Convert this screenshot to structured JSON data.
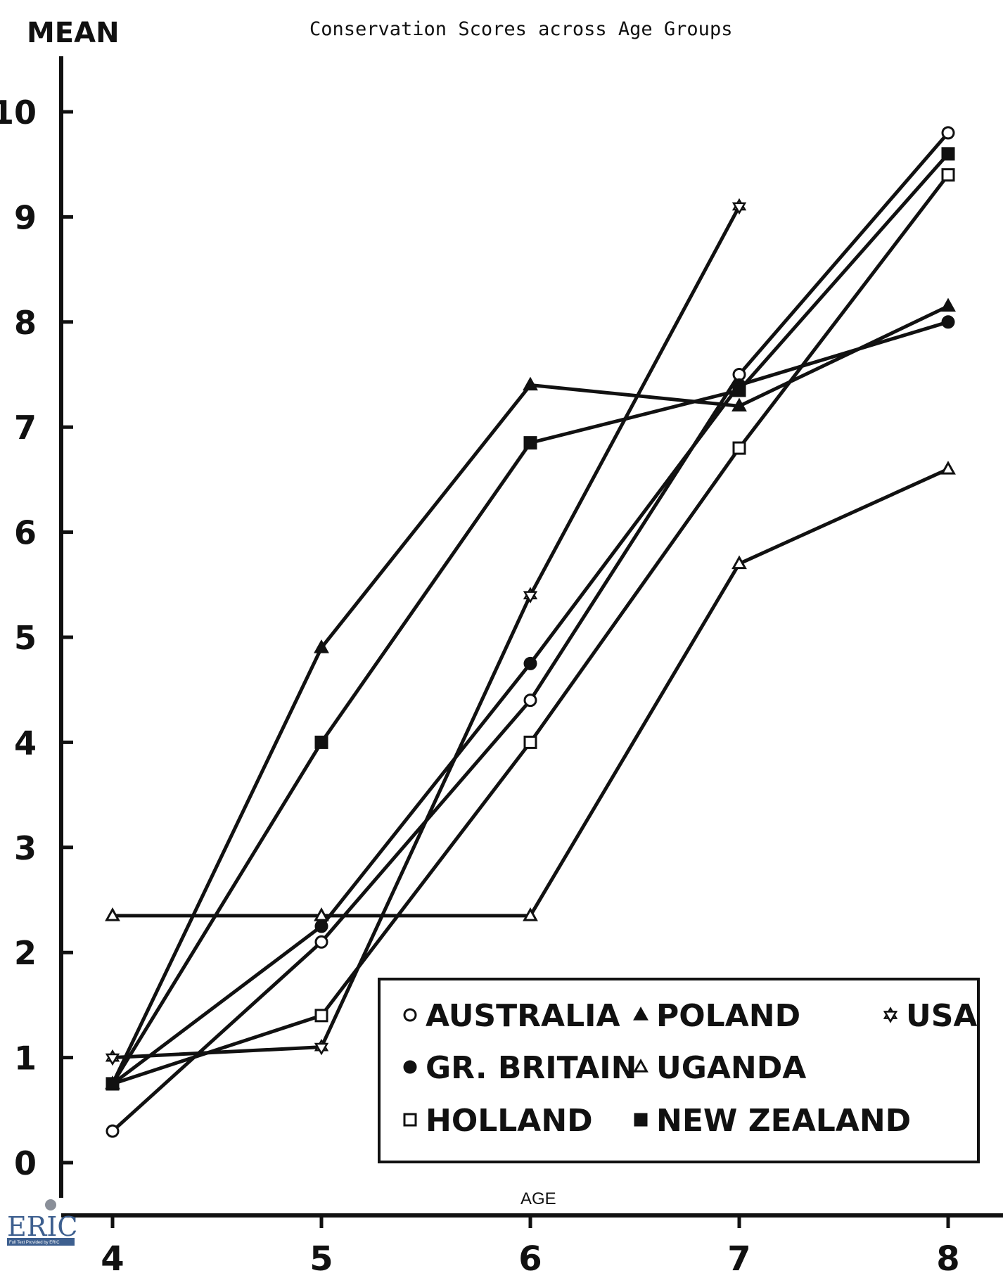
{
  "chart_data": {
    "type": "line",
    "title": "Conservation Scores across Age Groups",
    "ylabel": "MEAN",
    "xlabel": "AGE",
    "x": [
      4,
      5,
      6,
      7,
      8
    ],
    "xlim": [
      4,
      8
    ],
    "ylim": [
      0,
      10
    ],
    "yticks": [
      0,
      1,
      2,
      3,
      4,
      5,
      6,
      7,
      8,
      9,
      10
    ],
    "grid": false,
    "legend_position": "bottom-right",
    "series": [
      {
        "name": "AUSTRALIA",
        "marker": "open-circle",
        "values": [
          0.3,
          2.1,
          4.4,
          7.5,
          9.8
        ]
      },
      {
        "name": "GR. BRITAIN",
        "marker": "filled-circle",
        "values": [
          0.75,
          2.25,
          4.75,
          7.4,
          8.0
        ]
      },
      {
        "name": "HOLLAND",
        "marker": "open-square",
        "values": [
          0.75,
          1.4,
          4.0,
          6.8,
          9.4
        ]
      },
      {
        "name": "POLAND",
        "marker": "filled-triangle",
        "values": [
          0.75,
          4.9,
          7.4,
          7.2,
          8.15
        ]
      },
      {
        "name": "UGANDA",
        "marker": "open-triangle",
        "values": [
          2.35,
          2.35,
          2.35,
          5.7,
          6.6
        ]
      },
      {
        "name": "NEW ZEALAND",
        "marker": "filled-square",
        "values": [
          0.75,
          4.0,
          6.85,
          7.35,
          9.6
        ]
      },
      {
        "name": "USA",
        "marker": "star",
        "values": [
          1.0,
          1.1,
          5.4,
          9.1,
          null
        ]
      }
    ]
  },
  "logo": {
    "text": "ERIC",
    "subtext": "Full Text Provided by ERIC"
  }
}
